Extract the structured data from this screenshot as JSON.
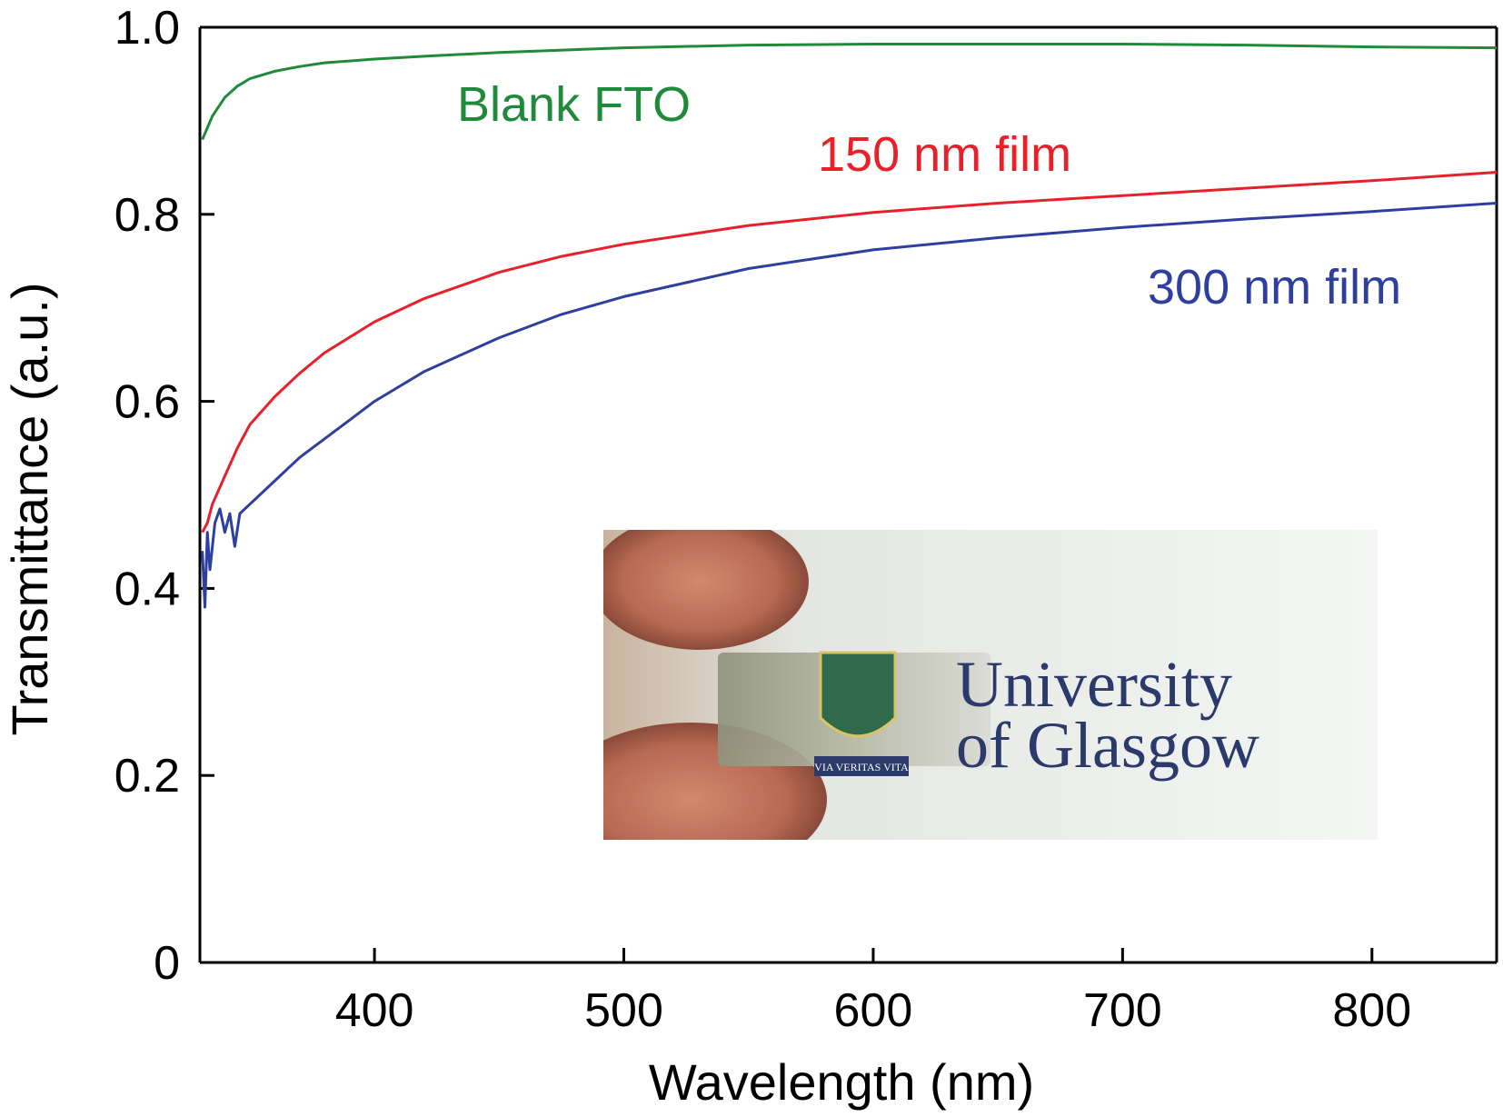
{
  "chart_data": {
    "type": "line",
    "xlabel": "Wavelength (nm)",
    "ylabel": "Transmittance (a.u.)",
    "xlim": [
      330,
      850
    ],
    "ylim": [
      0,
      1.0
    ],
    "x_ticks": [
      400,
      500,
      600,
      700,
      800
    ],
    "x_tick_labels": [
      "400",
      "500",
      "600",
      "700",
      "800"
    ],
    "y_ticks": [
      0,
      0.2,
      0.4,
      0.6,
      0.8,
      1.0
    ],
    "y_tick_labels": [
      "0",
      "0.2",
      "0.4",
      "0.6",
      "0.8",
      "1.0"
    ],
    "grid": false,
    "legend": "inline labels",
    "series": [
      {
        "name": "Blank FTO",
        "color": "#1f8a3a",
        "x": [
          331,
          335,
          340,
          345,
          350,
          360,
          370,
          380,
          400,
          420,
          450,
          500,
          550,
          600,
          650,
          700,
          750,
          800,
          850
        ],
        "y": [
          0.88,
          0.905,
          0.925,
          0.937,
          0.945,
          0.953,
          0.958,
          0.962,
          0.966,
          0.969,
          0.973,
          0.978,
          0.981,
          0.982,
          0.982,
          0.982,
          0.981,
          0.979,
          0.978
        ]
      },
      {
        "name": "150 nm film",
        "color": "#e8202a",
        "x": [
          331,
          333,
          335,
          340,
          345,
          350,
          360,
          370,
          380,
          400,
          420,
          450,
          475,
          500,
          550,
          600,
          650,
          700,
          750,
          800,
          850
        ],
        "y": [
          0.46,
          0.47,
          0.49,
          0.52,
          0.55,
          0.575,
          0.605,
          0.63,
          0.652,
          0.685,
          0.71,
          0.738,
          0.755,
          0.768,
          0.788,
          0.802,
          0.812,
          0.82,
          0.828,
          0.836,
          0.845
        ]
      },
      {
        "name": "300 nm film",
        "color": "#2e3fa0",
        "x": [
          331,
          332,
          333,
          334,
          336,
          338,
          340,
          342,
          344,
          346,
          350,
          360,
          370,
          380,
          400,
          420,
          450,
          475,
          500,
          550,
          600,
          650,
          700,
          750,
          800,
          850
        ],
        "y": [
          0.44,
          0.38,
          0.46,
          0.42,
          0.47,
          0.485,
          0.46,
          0.48,
          0.445,
          0.48,
          0.49,
          0.515,
          0.54,
          0.56,
          0.6,
          0.632,
          0.668,
          0.693,
          0.712,
          0.742,
          0.762,
          0.775,
          0.786,
          0.795,
          0.803,
          0.812
        ]
      }
    ],
    "annotations": [
      "Blank FTO",
      "150 nm film",
      "300 nm film"
    ]
  },
  "inset": {
    "line1": "University",
    "line2": "of Glasgow",
    "motto": "VIA VERITAS VITA"
  },
  "colors": {
    "blank_fto": "#1f8a3a",
    "film_150": "#e8202a",
    "film_300": "#2e3fa0",
    "logo_text": "#2b3a6b"
  }
}
